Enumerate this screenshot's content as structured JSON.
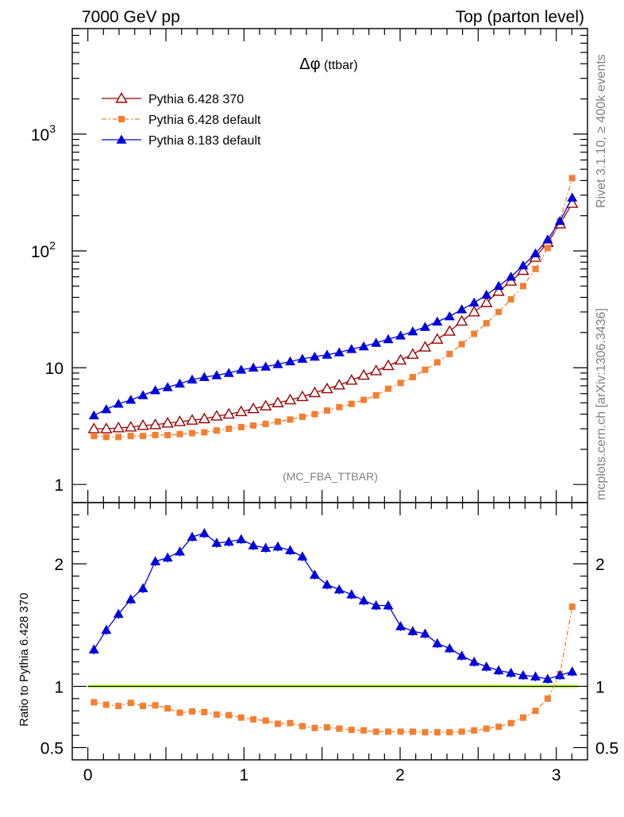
{
  "header": {
    "left": "7000 GeV pp",
    "right": "Top (parton level)"
  },
  "side": {
    "rivet": "Rivet 3.1.10, ≥ 400k events",
    "mcplots": "mcplots.cern.ch [arXiv:1306.3436]"
  },
  "plot": {
    "title_symbol": "Δφ",
    "title_rest": " (ttbar)",
    "analysis": "(MC_FBA_TTBAR)",
    "ratio_ylabel": "Ratio to Pythia 6.428 370"
  },
  "colors": {
    "p6_370": "#990000",
    "p6_default": "#f47f30",
    "p8": "#0000dd",
    "band": "#ccff66"
  },
  "chart_data": [
    {
      "type": "line",
      "title": "Δφ (ttbar)",
      "yscale": "log",
      "xlim": [
        -0.1,
        3.2
      ],
      "ylim": [
        0.7,
        8000
      ],
      "legend_position": "top-left",
      "y_tick_labels": [
        "1",
        "10",
        "10²",
        "10³"
      ],
      "x": [
        0.039,
        0.118,
        0.196,
        0.275,
        0.353,
        0.432,
        0.511,
        0.589,
        0.668,
        0.746,
        0.825,
        0.903,
        0.982,
        1.06,
        1.139,
        1.217,
        1.296,
        1.374,
        1.453,
        1.532,
        1.61,
        1.689,
        1.767,
        1.846,
        1.924,
        2.003,
        2.081,
        2.16,
        2.238,
        2.317,
        2.395,
        2.474,
        2.553,
        2.631,
        2.71,
        2.788,
        2.867,
        2.945,
        3.024,
        3.102
      ],
      "series": [
        {
          "name": "Pythia 6.428 370",
          "marker": "open-triangle",
          "values": [
            3.0,
            3.0,
            3.05,
            3.1,
            3.2,
            3.25,
            3.35,
            3.45,
            3.55,
            3.65,
            3.85,
            4.0,
            4.2,
            4.45,
            4.7,
            5.0,
            5.3,
            5.65,
            6.1,
            6.6,
            7.1,
            7.8,
            8.6,
            9.4,
            10.4,
            11.6,
            13.0,
            15.0,
            17.5,
            20.5,
            25.0,
            30.0,
            36.0,
            45.0,
            55.0,
            68.0,
            88.0,
            118.0,
            170.0,
            255.0
          ]
        },
        {
          "name": "Pythia 6.428 default",
          "marker": "square",
          "values": [
            2.6,
            2.55,
            2.55,
            2.6,
            2.6,
            2.65,
            2.65,
            2.7,
            2.75,
            2.8,
            2.9,
            3.0,
            3.1,
            3.2,
            3.3,
            3.45,
            3.6,
            3.8,
            4.0,
            4.3,
            4.6,
            4.9,
            5.3,
            5.8,
            6.6,
            7.4,
            8.3,
            9.6,
            11.1,
            13.1,
            15.9,
            19.5,
            24.0,
            30.0,
            38.5,
            50.0,
            70.0,
            106.0,
            180.0,
            420.0
          ]
        },
        {
          "name": "Pythia 8.183 default",
          "marker": "filled-triangle",
          "values": [
            3.9,
            4.4,
            4.9,
            5.3,
            5.8,
            6.4,
            6.8,
            7.3,
            7.9,
            8.3,
            8.6,
            9.0,
            9.6,
            10.0,
            10.2,
            10.7,
            11.3,
            11.9,
            12.4,
            12.9,
            13.5,
            14.4,
            15.2,
            16.3,
            17.5,
            18.8,
            20.4,
            22.3,
            24.8,
            27.5,
            31.5,
            36.0,
            42.0,
            50.0,
            60.0,
            75.0,
            95.0,
            125.0,
            180.0,
            285.0
          ]
        }
      ]
    },
    {
      "type": "line",
      "ylabel": "Ratio to Pythia 6.428 370",
      "xlim": [
        -0.1,
        3.2
      ],
      "ylim": [
        0.4,
        2.5
      ],
      "x_tick_labels": [
        "0",
        "1",
        "2",
        "3"
      ],
      "y_tick_labels": [
        "0.5",
        "1",
        "2"
      ],
      "x": [
        0.039,
        0.118,
        0.196,
        0.275,
        0.353,
        0.432,
        0.511,
        0.589,
        0.668,
        0.746,
        0.825,
        0.903,
        0.982,
        1.06,
        1.139,
        1.217,
        1.296,
        1.374,
        1.453,
        1.532,
        1.61,
        1.689,
        1.767,
        1.846,
        1.924,
        2.003,
        2.081,
        2.16,
        2.238,
        2.317,
        2.395,
        2.474,
        2.553,
        2.631,
        2.71,
        2.788,
        2.867,
        2.945,
        3.024,
        3.102
      ],
      "series": [
        {
          "name": "Pythia 6.428 default",
          "marker": "square",
          "values": [
            0.87,
            0.85,
            0.84,
            0.865,
            0.84,
            0.845,
            0.82,
            0.785,
            0.795,
            0.79,
            0.77,
            0.765,
            0.745,
            0.73,
            0.72,
            0.695,
            0.7,
            0.675,
            0.66,
            0.665,
            0.655,
            0.645,
            0.64,
            0.63,
            0.63,
            0.63,
            0.63,
            0.625,
            0.625,
            0.625,
            0.63,
            0.64,
            0.655,
            0.67,
            0.7,
            0.745,
            0.8,
            0.9,
            1.1,
            1.65
          ]
        },
        {
          "name": "Pythia 8.183 default",
          "marker": "filled-triangle",
          "values": [
            1.3,
            1.46,
            1.59,
            1.71,
            1.8,
            2.02,
            2.05,
            2.1,
            2.22,
            2.25,
            2.17,
            2.18,
            2.2,
            2.15,
            2.13,
            2.14,
            2.11,
            2.06,
            1.91,
            1.83,
            1.79,
            1.75,
            1.7,
            1.66,
            1.66,
            1.49,
            1.45,
            1.43,
            1.35,
            1.31,
            1.25,
            1.2,
            1.16,
            1.13,
            1.11,
            1.09,
            1.08,
            1.06,
            1.09,
            1.12
          ]
        }
      ]
    }
  ]
}
